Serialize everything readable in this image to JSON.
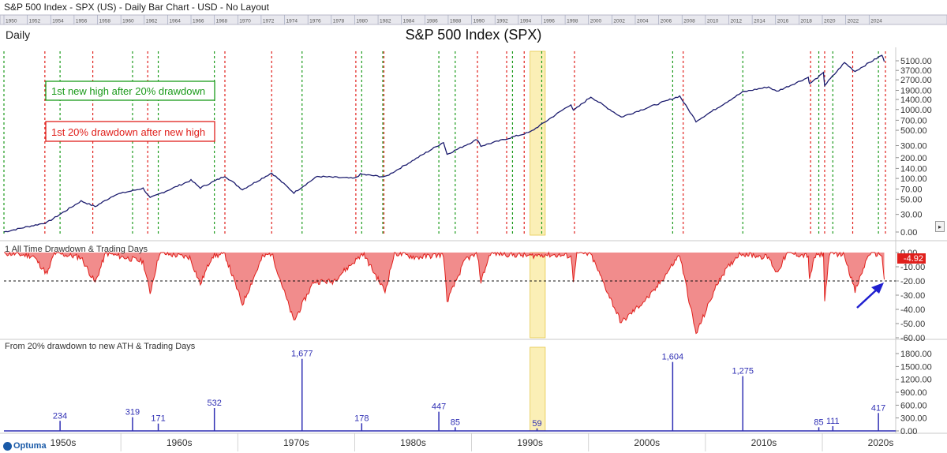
{
  "header": {
    "title_bar": "S&P 500 Index - SPX (US) - Daily Bar Chart - USD - No Layout",
    "timeframe_label": "Daily",
    "chart_title": "S&P 500 Index (SPX)"
  },
  "year_strip": [
    "1950",
    "1952",
    "1954",
    "1956",
    "1958",
    "1960",
    "1962",
    "1964",
    "1966",
    "1968",
    "1970",
    "1972",
    "1974",
    "1976",
    "1978",
    "1980",
    "1982",
    "1984",
    "1986",
    "1988",
    "1990",
    "1992",
    "1994",
    "1996",
    "1998",
    "2000",
    "2002",
    "2004",
    "2006",
    "2008",
    "2010",
    "2012",
    "2014",
    "2016",
    "2018",
    "2020",
    "2022",
    "2024"
  ],
  "legend": {
    "green_label": "1st new high after 20% drawdown",
    "red_label": "1st 20% drawdown after new high"
  },
  "logo": {
    "text": "Optuma"
  },
  "x_axis": {
    "labels": [
      "1950s",
      "1960s",
      "1970s",
      "1980s",
      "1990s",
      "2000s",
      "2010s",
      "2020s"
    ]
  },
  "colors": {
    "price_line": "#1c1c6e",
    "drawdown_fill": "#f08080",
    "drawdown_line": "#e0201c",
    "green_marker": "#1a9a1a",
    "red_marker": "#e0201c",
    "highlight": "#f7e27a",
    "bar_color": "#2f2fb4",
    "arrow": "#2020d0"
  },
  "chart_data": [
    {
      "type": "line",
      "title": "S&P 500 Index (SPX)",
      "scale": "log",
      "y_ticks": [
        "5100.00",
        "3700.00",
        "2700.00",
        "1900.00",
        "1400.00",
        "1000.00",
        "700.00",
        "500.00",
        "300.00",
        "200.00",
        "140.00",
        "100.00",
        "70.00",
        "50.00",
        "30.00",
        "0.00"
      ],
      "series": [
        {
          "x": [
            1950.0,
            1953.7,
            1956.6,
            1957.8,
            1959.5,
            1961.9,
            1962.5,
            1966.0,
            1966.8,
            1968.9,
            1970.4,
            1972.9,
            1974.8,
            1976.8,
            1980.0,
            1980.5,
            1982.6,
            1987.6,
            1987.9,
            1990.5,
            1990.8,
            1995.0,
            1998.5,
            1998.7,
            2000.2,
            2002.8,
            2007.8,
            2009.2,
            2013.2,
            2015.4,
            2016.1,
            2018.8,
            2018.9,
            2020.1,
            2020.2,
            2021.9,
            2022.8,
            2024.0,
            2025.1,
            2025.3
          ],
          "y": [
            16.7,
            23,
            47,
            39,
            58,
            72,
            52,
            94,
            73,
            108,
            69,
            120,
            62,
            107,
            100,
            115,
            105,
            335,
            224,
            369,
            295,
            470,
            1190,
            960,
            1527,
            777,
            1565,
            677,
            1800,
            2130,
            1830,
            2930,
            2350,
            3386,
            2237,
            4796,
            3577,
            4770,
            6144,
            4982
          ]
        }
      ],
      "markers": {
        "green": [
          1950.0,
          1954.8,
          1961.0,
          1963.2,
          1968.0,
          1975.5,
          1980.6,
          1982.4,
          1987.2,
          1988.6,
          1993.5,
          1996.0,
          2007.2,
          2013.2,
          2019.7,
          2020.9,
          2024.8
        ],
        "red": [
          1953.5,
          1957.6,
          1962.3,
          1968.9,
          1972.9,
          1980.1,
          1982.5,
          1990.5,
          1993.0,
          1994.5,
          1998.8,
          2008.1,
          2019.0,
          2020.2,
          2022.6,
          2025.4
        ]
      },
      "highlight": [
        1995.0,
        1996.3
      ]
    },
    {
      "type": "area",
      "title": "1 All Time Drawdown & Trading Days",
      "y_ticks": [
        "0.00",
        "-10.00",
        "-20.00",
        "-30.00",
        "-40.00",
        "-50.00",
        "-60.00"
      ],
      "threshold": -20,
      "last_value": "-4.92",
      "series": [
        {
          "x": [
            1950.0,
            1952.5,
            1953.7,
            1954.3,
            1956.6,
            1957.8,
            1958.7,
            1961.9,
            1962.5,
            1963.3,
            1965.9,
            1966.8,
            1967.8,
            1968.9,
            1970.4,
            1972.1,
            1972.9,
            1974.8,
            1976.5,
            1978.1,
            1980.5,
            1980.7,
            1982.6,
            1983.4,
            1985.3,
            1987.6,
            1987.9,
            1989.5,
            1990.5,
            1990.8,
            1991.6,
            1995.0,
            1996.3,
            1998.5,
            1998.7,
            1999.0,
            2000.2,
            2002.8,
            2005.5,
            2007.8,
            2009.2,
            2011.2,
            2012.9,
            2015.4,
            2016.1,
            2017.0,
            2018.8,
            2018.9,
            2019.3,
            2020.1,
            2020.2,
            2020.6,
            2021.9,
            2022.8,
            2024.0,
            2025.1,
            2025.3
          ],
          "y": [
            0,
            -2,
            -15,
            0,
            -3,
            -21,
            0,
            -6,
            -28,
            0,
            -3,
            -22,
            -2,
            -1,
            -36,
            -3,
            0,
            -48,
            -20,
            -20,
            -2,
            0,
            -27,
            0,
            -3,
            -1,
            -34,
            -4,
            -1,
            -20,
            0,
            -2,
            -1,
            -2,
            -19,
            0,
            -1,
            -49,
            -28,
            -1,
            -57,
            -18,
            0,
            -3,
            -14,
            0,
            -2,
            -20,
            -3,
            0,
            -34,
            0,
            -1,
            -27,
            0,
            -1,
            -19
          ]
        }
      ]
    },
    {
      "type": "bar",
      "title": "From 20% drawdown to new ATH & Trading Days",
      "y_ticks": [
        "1800.00",
        "1500.00",
        "1200.00",
        "900.00",
        "600.00",
        "300.00",
        "0.00"
      ],
      "ylim": [
        0,
        1800
      ],
      "bars": [
        {
          "x": 1954.8,
          "value": 234,
          "label": "234"
        },
        {
          "x": 1961.0,
          "value": 319,
          "label": "319"
        },
        {
          "x": 1963.2,
          "value": 171,
          "label": "171"
        },
        {
          "x": 1968.0,
          "value": 532,
          "label": "532"
        },
        {
          "x": 1975.5,
          "value": 1677,
          "label": "1,677"
        },
        {
          "x": 1980.6,
          "value": 178,
          "label": "178"
        },
        {
          "x": 1987.2,
          "value": 447,
          "label": "447"
        },
        {
          "x": 1988.6,
          "value": 85,
          "label": "85"
        },
        {
          "x": 1995.6,
          "value": 59,
          "label": "59"
        },
        {
          "x": 2007.2,
          "value": 1604,
          "label": "1,604"
        },
        {
          "x": 2013.2,
          "value": 1275,
          "label": "1,275"
        },
        {
          "x": 2019.7,
          "value": 85,
          "label": "85"
        },
        {
          "x": 2020.9,
          "value": 111,
          "label": "111"
        },
        {
          "x": 2024.8,
          "value": 417,
          "label": "417"
        }
      ]
    }
  ]
}
